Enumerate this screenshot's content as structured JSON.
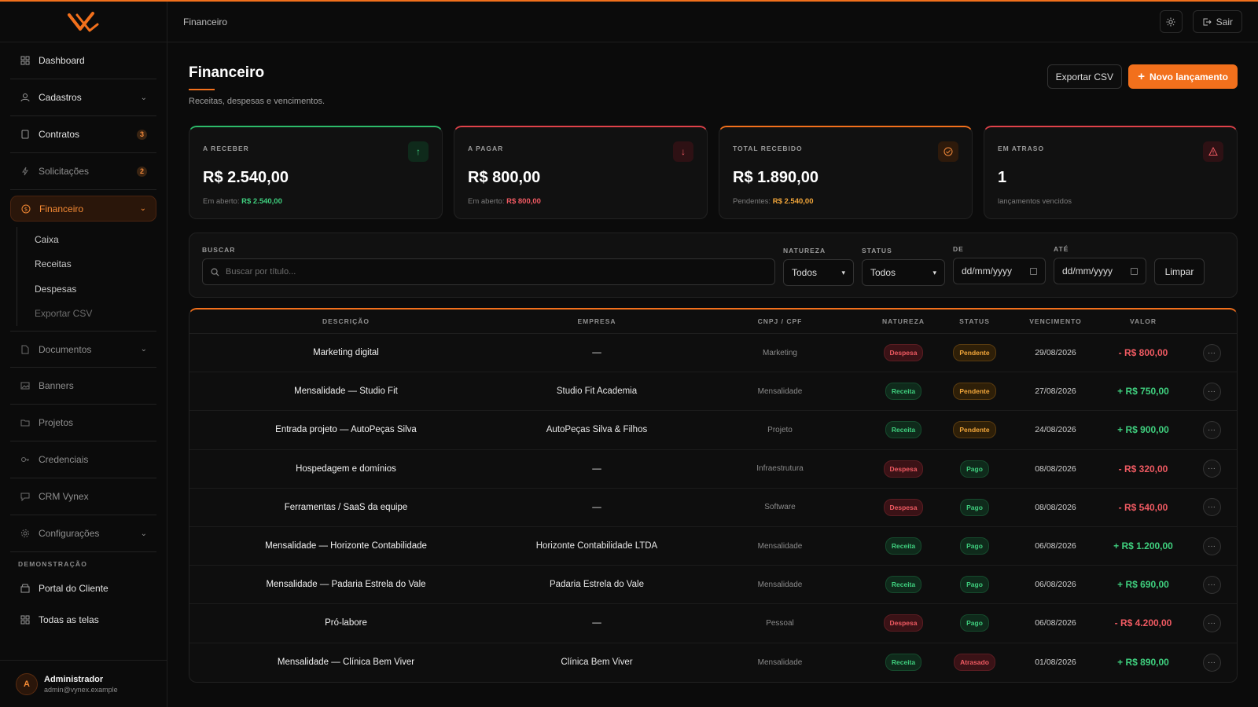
{
  "app": {
    "logo": "Vynex logo"
  },
  "topbar": {
    "breadcrumb": "Financeiro",
    "theme_icon": "sun-icon",
    "logout_label": "Sair"
  },
  "sidebar": {
    "items": [
      {
        "label": "Dashboard",
        "icon": "grid-icon"
      },
      {
        "label": "Cadastros",
        "icon": "users-icon"
      },
      {
        "label": "Contratos",
        "icon": "file-icon",
        "badge": "3"
      },
      {
        "label": "Solicitações",
        "icon": "bolt-icon",
        "badge": "2"
      },
      {
        "label": "Financeiro",
        "icon": "dollar-icon"
      },
      {
        "label": "Documentos",
        "icon": "doc-icon"
      },
      {
        "label": "Banners",
        "icon": "image-icon"
      },
      {
        "label": "Projetos",
        "icon": "folder-icon"
      },
      {
        "label": "Credenciais",
        "icon": "key-icon"
      },
      {
        "label": "CRM Vynex",
        "icon": "chat-icon"
      },
      {
        "label": "Configurações",
        "icon": "gear-icon"
      }
    ],
    "financeiro_sub": [
      "Caixa",
      "Receitas",
      "Despesas",
      "Exportar CSV"
    ],
    "section_label": "DEMONSTRAÇÃO",
    "demo_items": [
      {
        "label": "Portal do Cliente",
        "icon": "store-icon"
      },
      {
        "label": "Todas as telas",
        "icon": "grid-icon"
      }
    ],
    "user": {
      "initial": "A",
      "name": "Administrador",
      "email": "admin@vynex.example"
    }
  },
  "page": {
    "title": "Financeiro",
    "subtitle": "Receitas, despesas e vencimentos.",
    "export_label": "Exportar CSV",
    "new_label": "Novo lançamento"
  },
  "cards": [
    {
      "label": "A RECEBER",
      "value": "R$ 2.540,00",
      "sub_label": "Em aberto:",
      "sub_value": "R$ 2.540,00",
      "accent": "#2dbb6a"
    },
    {
      "label": "A PAGAR",
      "value": "R$ 800,00",
      "sub_label": "Em aberto:",
      "sub_value": "R$ 800,00",
      "accent": "#e0424a"
    },
    {
      "label": "TOTAL RECEBIDO",
      "value": "R$ 1.890,00",
      "sub_label": "Pendentes:",
      "sub_value": "R$ 2.540,00",
      "accent": "#f2701c"
    },
    {
      "label": "EM ATRASO",
      "value": "1",
      "sub_label": "lançamentos vencidos",
      "sub_value": "",
      "accent": "#e0424a"
    }
  ],
  "filters": {
    "search_label": "BUSCAR",
    "search_placeholder": "Buscar por título...",
    "natureza_label": "NATUREZA",
    "natureza_value": "Todos",
    "status_label": "STATUS",
    "status_value": "Todos",
    "de_label": "DE",
    "de_value": "dd/mm/yyyy",
    "ate_label": "ATÉ",
    "ate_value": "dd/mm/yyyy",
    "clear_label": "Limpar"
  },
  "table": {
    "headers": [
      "DESCRIÇÃO",
      "EMPRESA",
      "CNPJ / CPF",
      "NATUREZA",
      "STATUS",
      "VENCIMENTO",
      "VALOR"
    ],
    "rows": [
      {
        "descricao": "Marketing digital",
        "empresa": "—",
        "categoria": "Marketing",
        "natureza": "Despesa",
        "status": "Pendente",
        "vencimento": "29/08/2026",
        "valor": "- R$ 800,00"
      },
      {
        "descricao": "Mensalidade — Studio Fit",
        "empresa": "Studio Fit Academia",
        "categoria": "Mensalidade",
        "natureza": "Receita",
        "status": "Pendente",
        "vencimento": "27/08/2026",
        "valor": "+ R$ 750,00"
      },
      {
        "descricao": "Entrada projeto — AutoPeças Silva",
        "empresa": "AutoPeças Silva & Filhos",
        "categoria": "Projeto",
        "natureza": "Receita",
        "status": "Pendente",
        "vencimento": "24/08/2026",
        "valor": "+ R$ 900,00"
      },
      {
        "descricao": "Hospedagem e domínios",
        "empresa": "—",
        "categoria": "Infraestrutura",
        "natureza": "Despesa",
        "status": "Pago",
        "vencimento": "08/08/2026",
        "valor": "- R$ 320,00"
      },
      {
        "descricao": "Ferramentas / SaaS da equipe",
        "empresa": "—",
        "categoria": "Software",
        "natureza": "Despesa",
        "status": "Pago",
        "vencimento": "08/08/2026",
        "valor": "- R$ 540,00"
      },
      {
        "descricao": "Mensalidade — Horizonte Contabilidade",
        "empresa": "Horizonte Contabilidade LTDA",
        "categoria": "Mensalidade",
        "natureza": "Receita",
        "status": "Pago",
        "vencimento": "06/08/2026",
        "valor": "+ R$ 1.200,00"
      },
      {
        "descricao": "Mensalidade — Padaria Estrela do Vale",
        "empresa": "Padaria Estrela do Vale",
        "categoria": "Mensalidade",
        "natureza": "Receita",
        "status": "Pago",
        "vencimento": "06/08/2026",
        "valor": "+ R$ 690,00"
      },
      {
        "descricao": "Pró-labore",
        "empresa": "—",
        "categoria": "Pessoal",
        "natureza": "Despesa",
        "status": "Pago",
        "vencimento": "06/08/2026",
        "valor": "- R$ 4.200,00"
      },
      {
        "descricao": "Mensalidade — Clínica Bem Viver",
        "empresa": "Clínica Bem Viver",
        "categoria": "Mensalidade",
        "natureza": "Receita",
        "status": "Atrasado",
        "vencimento": "01/08/2026",
        "valor": "+ R$ 890,00"
      }
    ]
  },
  "colors": {
    "accent": "#f2701c",
    "positive": "#3fcf7e",
    "negative": "#f05a62",
    "warning": "#f2a63a"
  }
}
